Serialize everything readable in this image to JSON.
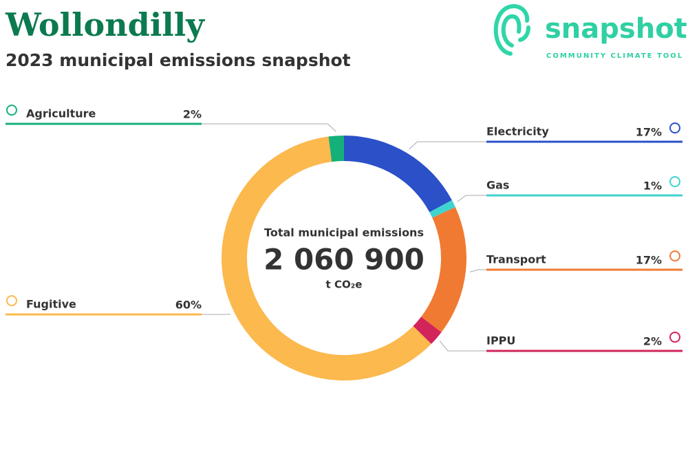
{
  "header": {
    "title": "Wollondilly",
    "subtitle": "2023 municipal emissions snapshot"
  },
  "logo": {
    "name": "snapshot",
    "tagline": "COMMUNITY CLIMATE TOOL"
  },
  "chart_data": {
    "type": "donut",
    "center_label": "Total municipal emissions",
    "total": {
      "value": 2060900,
      "label": "2 060 900"
    },
    "unit": "t CO₂e",
    "categories": [
      "Electricity",
      "Gas",
      "Transport",
      "IPPU",
      "Fugitive",
      "Agriculture"
    ],
    "values": [
      17,
      1,
      17,
      2,
      60,
      2
    ],
    "value_labels": [
      "17%",
      "1%",
      "17%",
      "2%",
      "60%",
      "2%"
    ],
    "colors": [
      "#2b50c8",
      "#3fd3cf",
      "#f07a32",
      "#d2235a",
      "#fbb94e",
      "#14b07a"
    ]
  }
}
